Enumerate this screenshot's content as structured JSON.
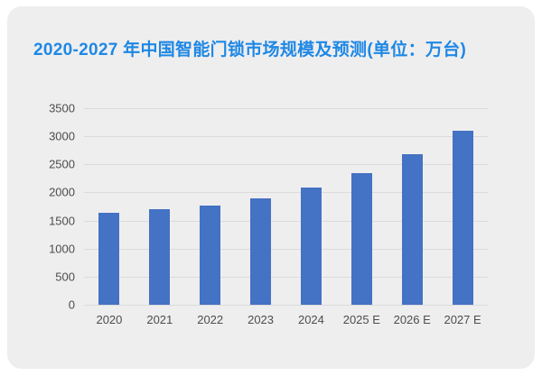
{
  "colors": {
    "card_background": "#efeeee",
    "title": "#1e88e5",
    "bar": "#4472c4",
    "gridline": "#dcdbdb",
    "axis_text": "#4d4d4d"
  },
  "chart_data": {
    "type": "bar",
    "title": "2020-2027 年中国智能门锁市场规模及预测(单位：万台)",
    "categories": [
      "2020",
      "2021",
      "2022",
      "2023",
      "2024",
      "2025 E",
      "2026 E",
      "2027 E"
    ],
    "values": [
      1640,
      1700,
      1760,
      1900,
      2090,
      2350,
      2680,
      3100
    ],
    "xlabel": "",
    "ylabel": "",
    "ylim": [
      0,
      3500
    ],
    "yticks": [
      0,
      500,
      1000,
      1500,
      2000,
      2500,
      3000,
      3500
    ],
    "grid": true,
    "legend": "none"
  }
}
